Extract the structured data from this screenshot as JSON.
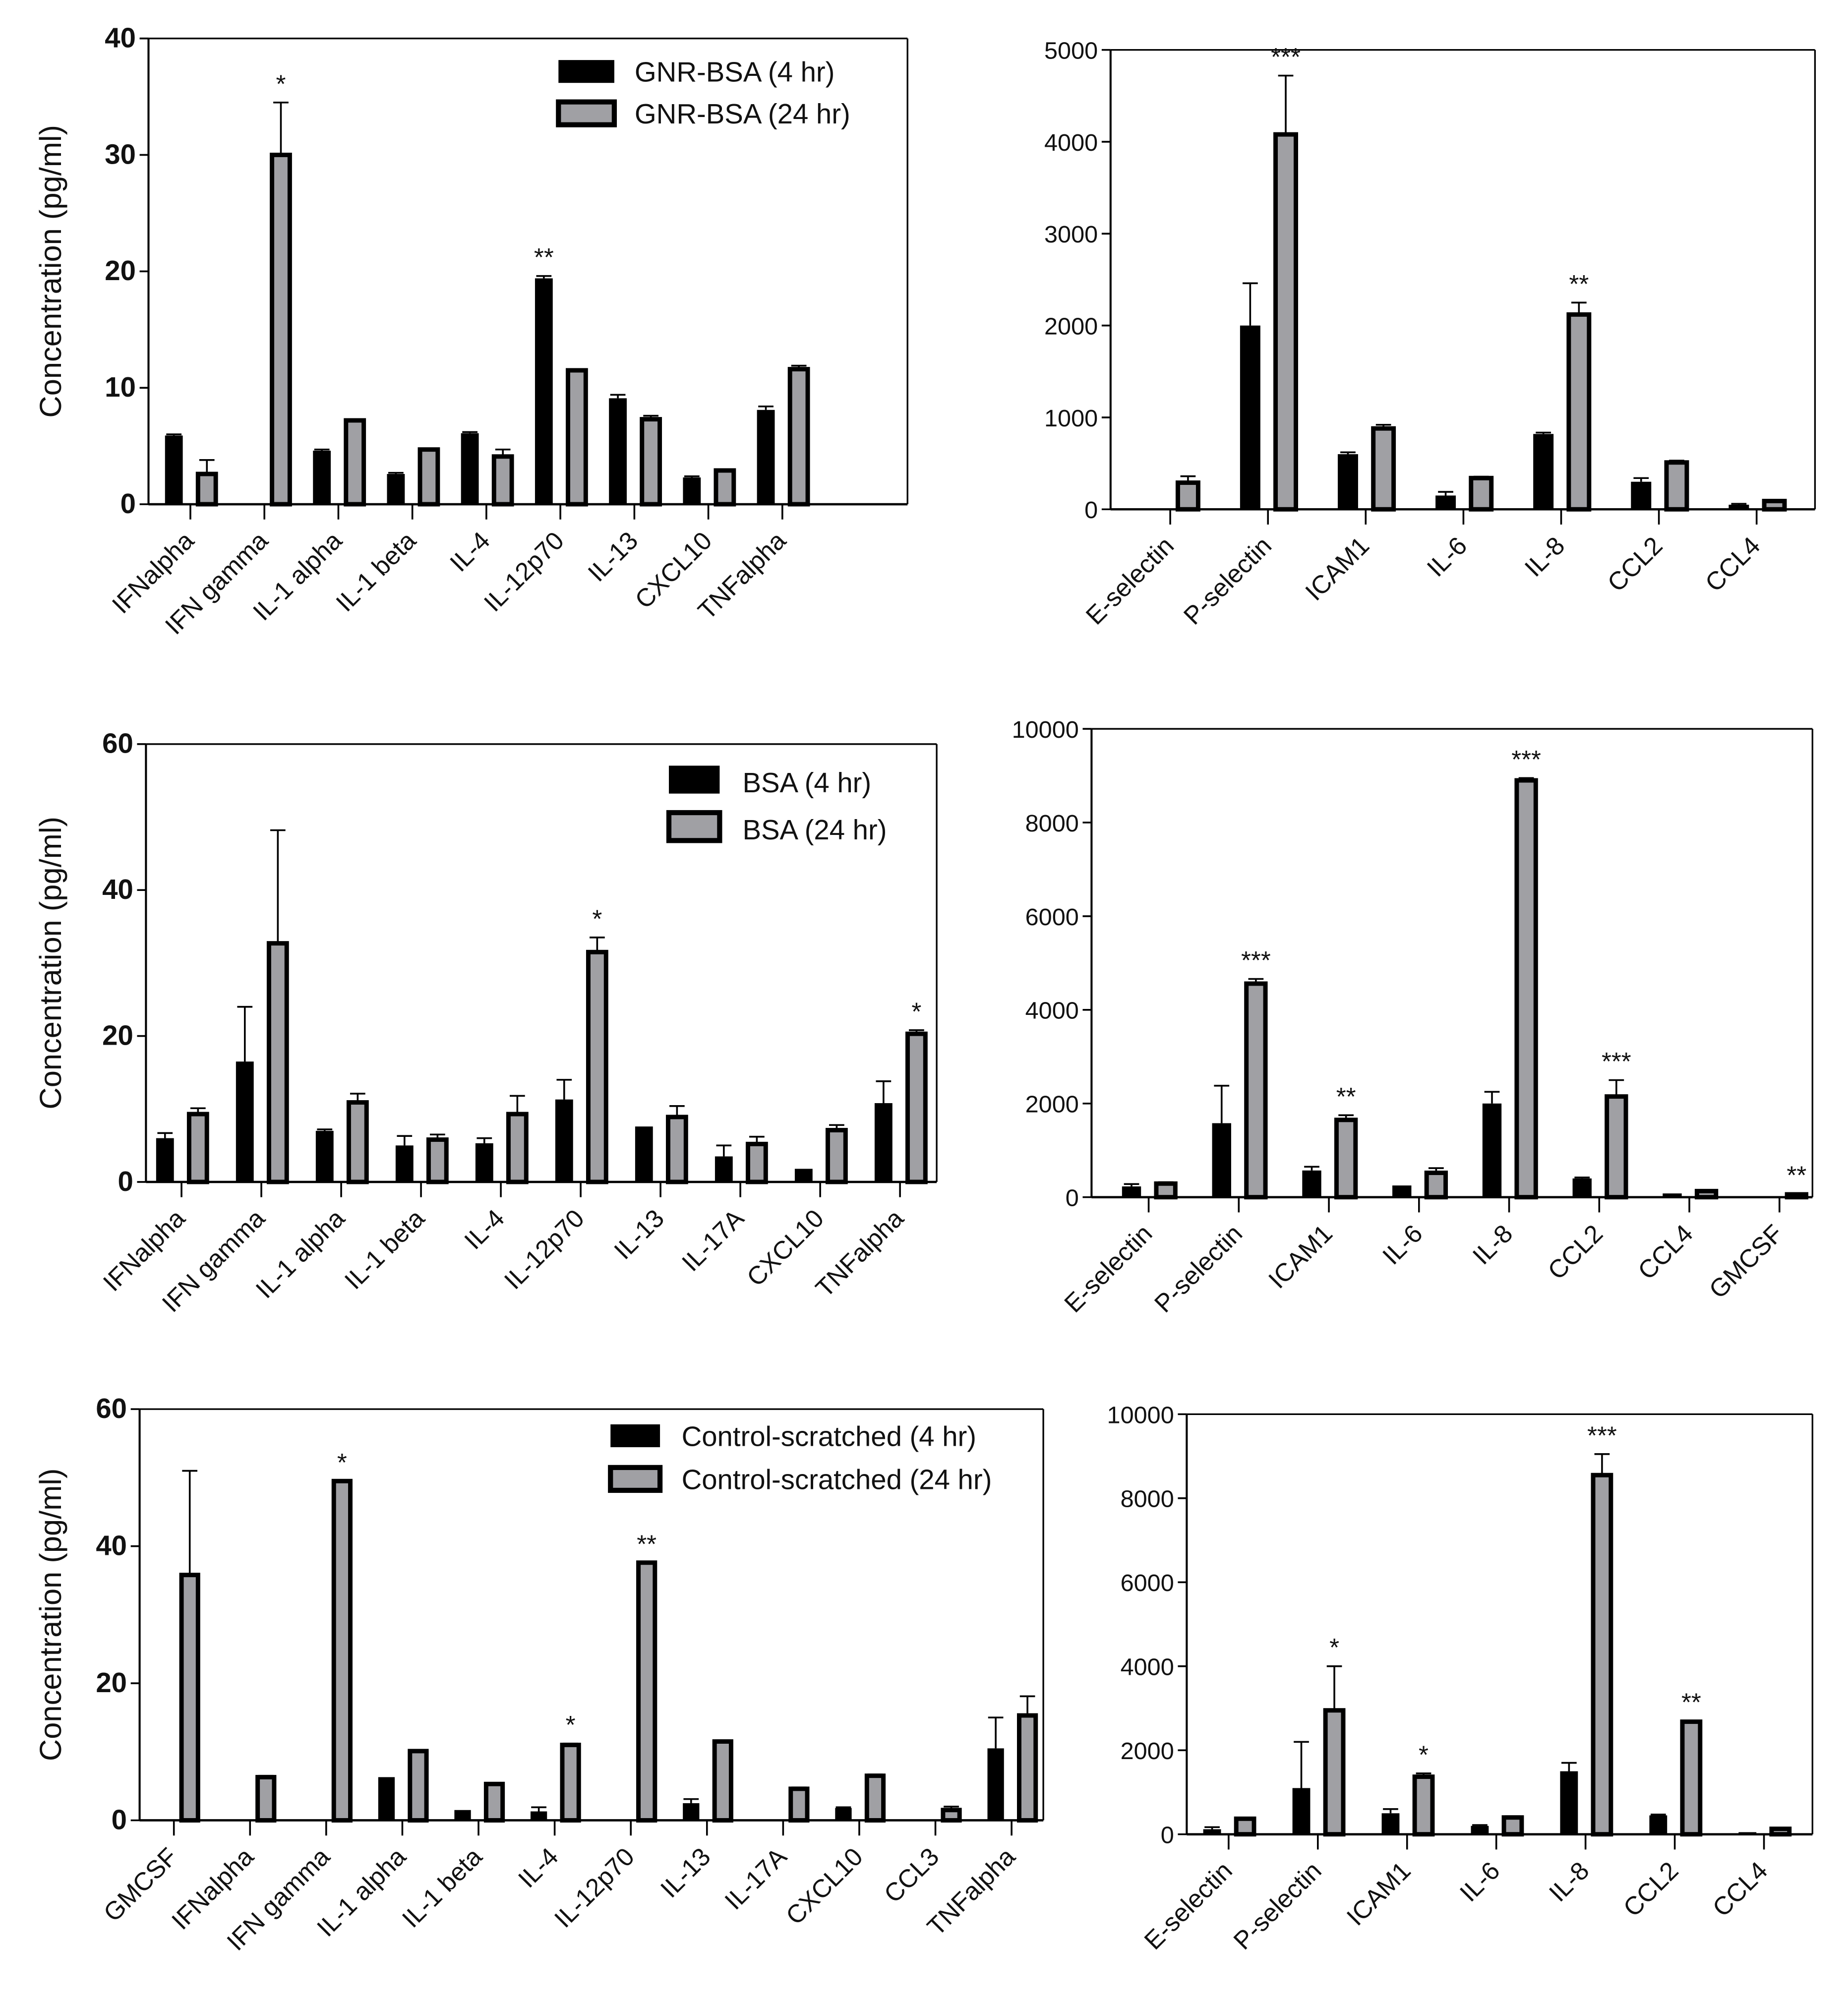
{
  "chart_data": [
    {
      "type": "bar",
      "title": "",
      "ylabel": "Concentration (pg/ml)",
      "ylim": [
        0,
        40
      ],
      "yticks": [
        0,
        10,
        20,
        30,
        40
      ],
      "legend_position": "top-right",
      "categories": [
        "IFNalpha",
        "IFN gamma",
        "IL-1 alpha",
        "IL-1 beta",
        "IL-4",
        "IL-12p70",
        "IL-13",
        "CXCL10",
        "TNFalpha"
      ],
      "series": [
        {
          "name": "GNR-BSA  (4 hr)",
          "color": "#000000",
          "values": [
            5.9,
            0,
            4.6,
            2.6,
            6.1,
            19.4,
            9.1,
            2.3,
            8.1
          ],
          "errors": [
            0.1,
            0,
            0.1,
            0.1,
            0.1,
            0.2,
            0.3,
            0.1,
            0.3
          ]
        },
        {
          "name": "GNR-BSA  (24 hr)",
          "color": "#a0a0a4",
          "values": [
            2.6,
            30,
            7.2,
            4.7,
            4.1,
            11.5,
            7.3,
            2.9,
            11.6
          ],
          "errors": [
            1.2,
            4.5,
            0,
            0.1,
            0.6,
            0.1,
            0.3,
            0.1,
            0.3
          ]
        }
      ],
      "significance": [
        {
          "category": "IFN gamma",
          "series": 1,
          "label": "*"
        },
        {
          "category": "IL-12p70",
          "series": 0,
          "label": "**"
        }
      ]
    },
    {
      "type": "bar",
      "title": "",
      "ylabel": "",
      "ylim": [
        0,
        5000
      ],
      "yticks": [
        0,
        1000,
        2000,
        3000,
        4000,
        5000
      ],
      "categories": [
        "E-selectin",
        "P-selectin",
        "ICAM1",
        "IL-6",
        "IL-8",
        "CCL2",
        "CCL4"
      ],
      "series": [
        {
          "name": "GNR-BSA  (4 hr)",
          "color": "#000000",
          "values": [
            0,
            2000,
            600,
            150,
            820,
            300,
            50
          ],
          "errors": [
            0,
            460,
            20,
            40,
            15,
            40,
            10
          ]
        },
        {
          "name": "GNR-BSA  (24 hr)",
          "color": "#a0a0a4",
          "values": [
            290,
            4080,
            880,
            340,
            2120,
            510,
            90
          ],
          "errors": [
            70,
            640,
            40,
            15,
            130,
            20,
            10
          ]
        }
      ],
      "significance": [
        {
          "category": "P-selectin",
          "series": 1,
          "label": "***"
        },
        {
          "category": "IL-8",
          "series": 1,
          "label": "**"
        }
      ]
    },
    {
      "type": "bar",
      "title": "",
      "ylabel": "Concentration (pg/ml)",
      "ylim": [
        0,
        60
      ],
      "yticks": [
        0,
        20,
        40,
        60
      ],
      "legend_position": "top-right",
      "categories": [
        "IFNalpha",
        "IFN gamma",
        "IL-1 alpha",
        "IL-1 beta",
        "IL-4",
        "IL-12p70",
        "IL-13",
        "IL-17A",
        "CXCL10",
        "TNFalpha"
      ],
      "series": [
        {
          "name": "BSA (4 hr)",
          "color": "#000000",
          "values": [
            6,
            16.5,
            7,
            5,
            5.3,
            11.3,
            7.6,
            3.5,
            1.8,
            10.8
          ],
          "errors": [
            0.7,
            7.5,
            0.2,
            1.3,
            0.7,
            2.7,
            0,
            1.5,
            0,
            3
          ]
        },
        {
          "name": "BSA (24 hr)",
          "color": "#a0a0a4",
          "values": [
            9.3,
            32.7,
            10.9,
            5.8,
            9.3,
            31.5,
            8.9,
            5.2,
            7.1,
            20.3
          ],
          "errors": [
            0.8,
            15.5,
            1.2,
            0.7,
            2.5,
            2,
            1.5,
            1,
            0.7,
            0.5
          ]
        }
      ],
      "significance": [
        {
          "category": "IL-12p70",
          "series": 1,
          "label": "*"
        },
        {
          "category": "TNFalpha",
          "series": 1,
          "label": "*"
        }
      ]
    },
    {
      "type": "bar",
      "title": "",
      "ylabel": "",
      "ylim": [
        0,
        10000
      ],
      "yticks": [
        0,
        2000,
        4000,
        6000,
        8000,
        10000
      ],
      "categories": [
        "E-selectin",
        "P-selectin",
        "ICAM1",
        "IL-6",
        "IL-8",
        "CCL2",
        "CCL4",
        "GMCSF"
      ],
      "series": [
        {
          "name": "BSA (4 hr)",
          "color": "#000000",
          "values": [
            230,
            1580,
            570,
            250,
            2000,
            400,
            80,
            0
          ],
          "errors": [
            50,
            800,
            80,
            0,
            250,
            20,
            0,
            0
          ]
        },
        {
          "name": "BSA (24 hr)",
          "color": "#a0a0a4",
          "values": [
            290,
            4560,
            1650,
            520,
            8900,
            2150,
            130,
            60
          ],
          "errors": [
            30,
            100,
            100,
            100,
            50,
            350,
            20,
            10
          ]
        }
      ],
      "significance": [
        {
          "category": "P-selectin",
          "series": 1,
          "label": "***"
        },
        {
          "category": "ICAM1",
          "series": 1,
          "label": "**"
        },
        {
          "category": "IL-8",
          "series": 1,
          "label": "***"
        },
        {
          "category": "CCL2",
          "series": 1,
          "label": "***"
        },
        {
          "category": "GMCSF",
          "series": 1,
          "label": "**"
        }
      ]
    },
    {
      "type": "bar",
      "title": "",
      "ylabel": "Concentration (pg/ml)",
      "ylim": [
        0,
        60
      ],
      "yticks": [
        0,
        20,
        40,
        60
      ],
      "legend_position": "top-right",
      "categories": [
        "GMCSF",
        "IFNalpha",
        "IFN gamma",
        "IL-1 alpha",
        "IL-1 beta",
        "IL-4",
        "IL-12p70",
        "IL-13",
        "IL-17A",
        "CXCL10",
        "CCL3",
        "TNFalpha"
      ],
      "series": [
        {
          "name": "Control-scratched (4 hr)",
          "color": "#000000",
          "values": [
            0,
            0,
            0,
            6.3,
            1.5,
            1.3,
            0,
            2.5,
            0,
            1.8,
            0,
            10.5
          ],
          "errors": [
            0,
            0,
            0,
            0,
            0,
            0.6,
            0,
            0.6,
            0,
            0.1,
            0,
            4.5
          ]
        },
        {
          "name": "Control-scratched (24 hr)",
          "color": "#a0a0a4",
          "values": [
            35.8,
            6.3,
            49.5,
            10.1,
            5.3,
            11,
            37.6,
            11.5,
            4.6,
            6.5,
            1.5,
            15.3
          ],
          "errors": [
            15.2,
            0.2,
            0,
            0,
            0,
            0.2,
            0,
            0.2,
            0.2,
            0.2,
            0.5,
            2.8
          ]
        }
      ],
      "significance": [
        {
          "category": "IFN gamma",
          "series": 1,
          "label": "*"
        },
        {
          "category": "IL-4",
          "series": 1,
          "label": "*"
        },
        {
          "category": "IL-12p70",
          "series": 1,
          "label": "**"
        }
      ]
    },
    {
      "type": "bar",
      "title": "",
      "ylabel": "",
      "ylim": [
        0,
        10000
      ],
      "yticks": [
        0,
        2000,
        4000,
        6000,
        8000,
        10000
      ],
      "categories": [
        "E-selectin",
        "P-selectin",
        "ICAM1",
        "IL-6",
        "IL-8",
        "CCL2",
        "CCL4"
      ],
      "series": [
        {
          "name": "Control-scratched (4 hr)",
          "color": "#000000",
          "values": [
            120,
            1100,
            500,
            200,
            1500,
            450,
            50
          ],
          "errors": [
            50,
            1100,
            100,
            20,
            200,
            20,
            0
          ]
        },
        {
          "name": "Control-scratched (24 hr)",
          "color": "#a0a0a4",
          "values": [
            370,
            2950,
            1370,
            400,
            8550,
            2680,
            130
          ],
          "errors": [
            20,
            1050,
            80,
            30,
            500,
            20,
            0
          ]
        }
      ],
      "significance": [
        {
          "category": "P-selectin",
          "series": 1,
          "label": "*"
        },
        {
          "category": "ICAM1",
          "series": 1,
          "label": "*"
        },
        {
          "category": "IL-8",
          "series": 1,
          "label": "***"
        },
        {
          "category": "CCL2",
          "series": 1,
          "label": "**"
        }
      ]
    }
  ]
}
